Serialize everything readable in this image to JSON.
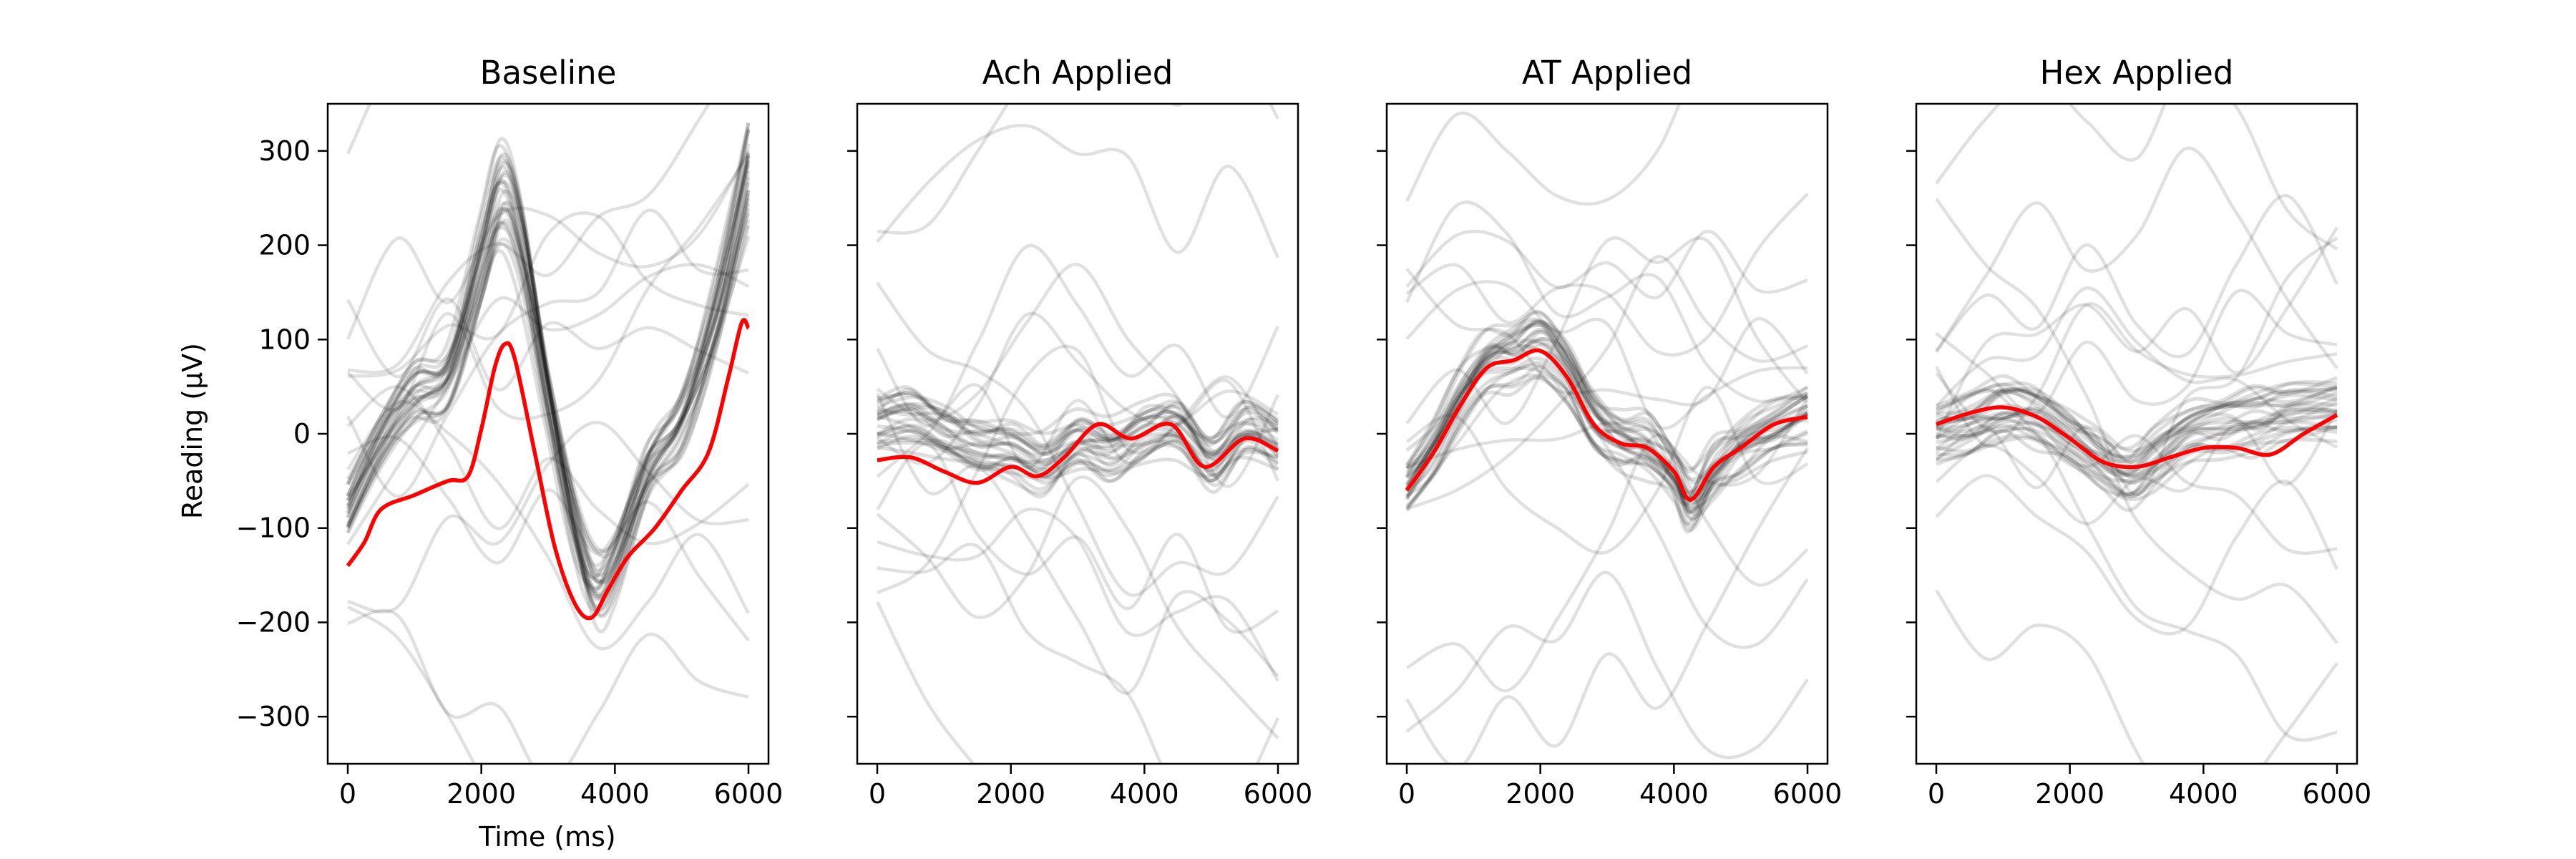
{
  "figure": {
    "ylabel": "Reading (μV)",
    "xlabel": "Time (ms)",
    "ylim": [
      -350,
      350
    ],
    "xlim": [
      -300,
      6300
    ],
    "yticks": [
      -300,
      -200,
      -100,
      0,
      100,
      200,
      300
    ],
    "xticks": [
      0,
      2000,
      4000,
      6000
    ],
    "trace_color": "#000000",
    "mean_color": "#ff0000"
  },
  "chart_data": [
    {
      "type": "line",
      "title": "Baseline",
      "xlabel": "Time (ms)",
      "ylabel": "Reading (μV)",
      "xlim": [
        -300,
        6300
      ],
      "ylim": [
        -350,
        350
      ],
      "mean_series": {
        "x": [
          0,
          250,
          500,
          1000,
          1500,
          1800,
          2000,
          2200,
          2350,
          2500,
          2800,
          3100,
          3400,
          3650,
          3900,
          4200,
          4600,
          5000,
          5400,
          5700,
          5900,
          6000
        ],
        "y": [
          -140,
          -115,
          -80,
          -65,
          -50,
          -45,
          5,
          70,
          95,
          80,
          -20,
          -120,
          -180,
          -195,
          -165,
          -130,
          -100,
          -60,
          -20,
          60,
          118,
          112
        ]
      },
      "bundle": {
        "x": [
          0,
          500,
          1000,
          1500,
          2000,
          2300,
          2600,
          3000,
          3400,
          3700,
          4000,
          4500,
          5000,
          5500,
          6000
        ],
        "y": [
          -80,
          -10,
          40,
          60,
          180,
          255,
          200,
          40,
          -100,
          -165,
          -140,
          -40,
          10,
          120,
          275
        ]
      },
      "grid": false
    },
    {
      "type": "line",
      "title": "Ach Applied",
      "xlabel": "",
      "ylabel": "",
      "xlim": [
        -300,
        6300
      ],
      "ylim": [
        -350,
        350
      ],
      "mean_series": {
        "x": [
          0,
          500,
          1000,
          1500,
          2000,
          2400,
          2800,
          3300,
          3800,
          4400,
          4900,
          5500,
          6000
        ],
        "y": [
          -28,
          -25,
          -40,
          -52,
          -35,
          -45,
          -25,
          10,
          -5,
          10,
          -35,
          -5,
          -18
        ]
      },
      "bundle": {
        "x": [
          0,
          500,
          1000,
          1500,
          2000,
          2500,
          3000,
          3500,
          4000,
          4500,
          5000,
          5500,
          6000
        ],
        "y": [
          15,
          20,
          5,
          -10,
          -15,
          -30,
          -5,
          -15,
          5,
          10,
          -25,
          5,
          -5
        ]
      },
      "grid": false
    },
    {
      "type": "line",
      "title": "AT Applied",
      "xlabel": "",
      "ylabel": "",
      "xlim": [
        -300,
        6300
      ],
      "ylim": [
        -350,
        350
      ],
      "mean_series": {
        "x": [
          0,
          400,
          800,
          1200,
          1600,
          2000,
          2400,
          2800,
          3200,
          3600,
          4000,
          4250,
          4600,
          5000,
          5500,
          6000
        ],
        "y": [
          -60,
          -20,
          30,
          70,
          78,
          88,
          60,
          10,
          -10,
          -15,
          -40,
          -70,
          -35,
          -15,
          10,
          18
        ]
      },
      "bundle": {
        "x": [
          0,
          400,
          800,
          1200,
          1600,
          2000,
          2400,
          2800,
          3200,
          3600,
          4000,
          4250,
          4600,
          5000,
          5500,
          6000
        ],
        "y": [
          -55,
          -15,
          35,
          75,
          82,
          95,
          65,
          15,
          -5,
          -15,
          -45,
          -75,
          -40,
          -15,
          5,
          20
        ]
      },
      "grid": false
    },
    {
      "type": "line",
      "title": "Hex Applied",
      "xlabel": "",
      "ylabel": "",
      "xlim": [
        -300,
        6300
      ],
      "ylim": [
        -350,
        350
      ],
      "mean_series": {
        "x": [
          0,
          500,
          1000,
          1500,
          2000,
          2500,
          3000,
          3500,
          4000,
          4500,
          5000,
          5500,
          6000
        ],
        "y": [
          10,
          22,
          28,
          18,
          -5,
          -30,
          -35,
          -25,
          -15,
          -15,
          -22,
          0,
          20
        ]
      },
      "bundle": {
        "x": [
          0,
          500,
          1000,
          1500,
          2000,
          2500,
          2900,
          3300,
          3800,
          4300,
          4800,
          5300,
          6000
        ],
        "y": [
          0,
          10,
          25,
          18,
          -5,
          -30,
          -45,
          -25,
          0,
          10,
          15,
          22,
          28
        ]
      },
      "grid": false
    }
  ]
}
